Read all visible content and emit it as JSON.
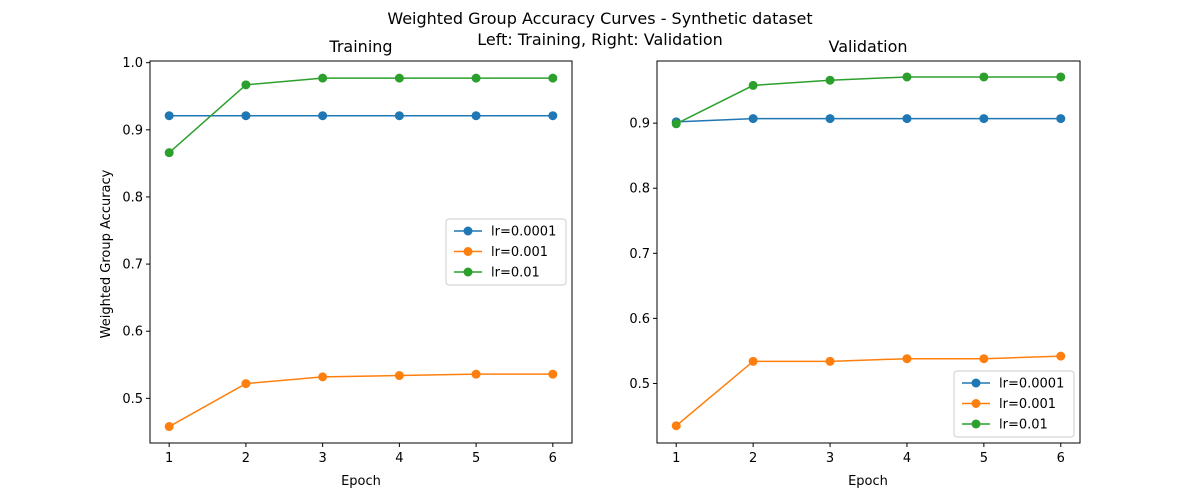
{
  "suptitle": {
    "line1": "Weighted Group Accuracy Curves - Synthetic dataset",
    "line2": "Left: Training, Right: Validation"
  },
  "colors": {
    "lr_0001": "#1f77b4",
    "lr_001": "#ff7f0e",
    "lr_01": "#2ca02c"
  },
  "chart_data": [
    {
      "type": "line",
      "title": "Training",
      "xlabel": "Epoch",
      "ylabel": "Weighted Group Accuracy",
      "x": [
        1,
        2,
        3,
        4,
        5,
        6
      ],
      "xlim": [
        0.75,
        6.25
      ],
      "ylim": [
        0.4335,
        1.0025
      ],
      "yticks": [
        0.5,
        0.6,
        0.7,
        0.8,
        0.9,
        1.0
      ],
      "ytick_labels": [
        "0.5",
        "0.6",
        "0.7",
        "0.8",
        "0.9",
        "1.0"
      ],
      "xticks": [
        1,
        2,
        3,
        4,
        5,
        6
      ],
      "xtick_labels": [
        "1",
        "2",
        "3",
        "4",
        "5",
        "6"
      ],
      "legend_position": "center-right",
      "series": [
        {
          "name": "lr=0.0001",
          "color": "#1f77b4",
          "values": [
            0.921,
            0.921,
            0.921,
            0.921,
            0.921,
            0.921
          ]
        },
        {
          "name": "lr=0.001",
          "color": "#ff7f0e",
          "values": [
            0.458,
            0.522,
            0.532,
            0.534,
            0.536,
            0.536
          ]
        },
        {
          "name": "lr=0.01",
          "color": "#2ca02c",
          "values": [
            0.866,
            0.967,
            0.977,
            0.977,
            0.977,
            0.977
          ]
        }
      ]
    },
    {
      "type": "line",
      "title": "Validation",
      "xlabel": "Epoch",
      "ylabel": "",
      "x": [
        1,
        2,
        3,
        4,
        5,
        6
      ],
      "xlim": [
        0.75,
        6.25
      ],
      "ylim": [
        0.4085,
        0.9955
      ],
      "yticks": [
        0.5,
        0.6,
        0.7,
        0.8,
        0.9
      ],
      "ytick_labels": [
        "0.5",
        "0.6",
        "0.7",
        "0.8",
        "0.9"
      ],
      "xticks": [
        1,
        2,
        3,
        4,
        5,
        6
      ],
      "xtick_labels": [
        "1",
        "2",
        "3",
        "4",
        "5",
        "6"
      ],
      "legend_position": "lower-right",
      "series": [
        {
          "name": "lr=0.0001",
          "color": "#1f77b4",
          "values": [
            0.902,
            0.907,
            0.907,
            0.907,
            0.907,
            0.907
          ]
        },
        {
          "name": "lr=0.001",
          "color": "#ff7f0e",
          "values": [
            0.435,
            0.534,
            0.534,
            0.538,
            0.538,
            0.542
          ]
        },
        {
          "name": "lr=0.01",
          "color": "#2ca02c",
          "values": [
            0.899,
            0.958,
            0.966,
            0.971,
            0.971,
            0.971
          ]
        }
      ]
    }
  ]
}
